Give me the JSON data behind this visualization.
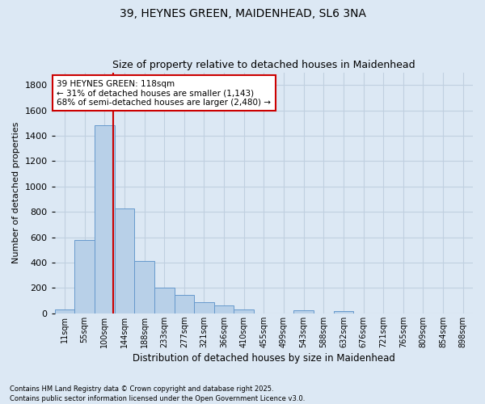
{
  "title_line1": "39, HEYNES GREEN, MAIDENHEAD, SL6 3NA",
  "title_line2": "Size of property relative to detached houses in Maidenhead",
  "xlabel": "Distribution of detached houses by size in Maidenhead",
  "ylabel": "Number of detached properties",
  "footnote1": "Contains HM Land Registry data © Crown copyright and database right 2025.",
  "footnote2": "Contains public sector information licensed under the Open Government Licence v3.0.",
  "categories": [
    "11sqm",
    "55sqm",
    "100sqm",
    "144sqm",
    "188sqm",
    "233sqm",
    "277sqm",
    "321sqm",
    "366sqm",
    "410sqm",
    "455sqm",
    "499sqm",
    "543sqm",
    "588sqm",
    "632sqm",
    "676sqm",
    "721sqm",
    "765sqm",
    "809sqm",
    "854sqm",
    "898sqm"
  ],
  "values": [
    30,
    580,
    1480,
    830,
    410,
    200,
    145,
    90,
    60,
    30,
    0,
    0,
    25,
    0,
    20,
    0,
    0,
    0,
    0,
    0,
    0
  ],
  "bar_color": "#b8d0e8",
  "bar_edge_color": "#6699cc",
  "grid_color": "#c0d0e0",
  "background_color": "#dce8f4",
  "vline_color": "#cc0000",
  "annotation_text": "39 HEYNES GREEN: 118sqm\n← 31% of detached houses are smaller (1,143)\n68% of semi-detached houses are larger (2,480) →",
  "annotation_box_color": "#ffffff",
  "annotation_box_edge": "#cc0000",
  "ylim": [
    0,
    1900
  ],
  "yticks": [
    0,
    200,
    400,
    600,
    800,
    1000,
    1200,
    1400,
    1600,
    1800
  ],
  "vline_pos": 2.42
}
